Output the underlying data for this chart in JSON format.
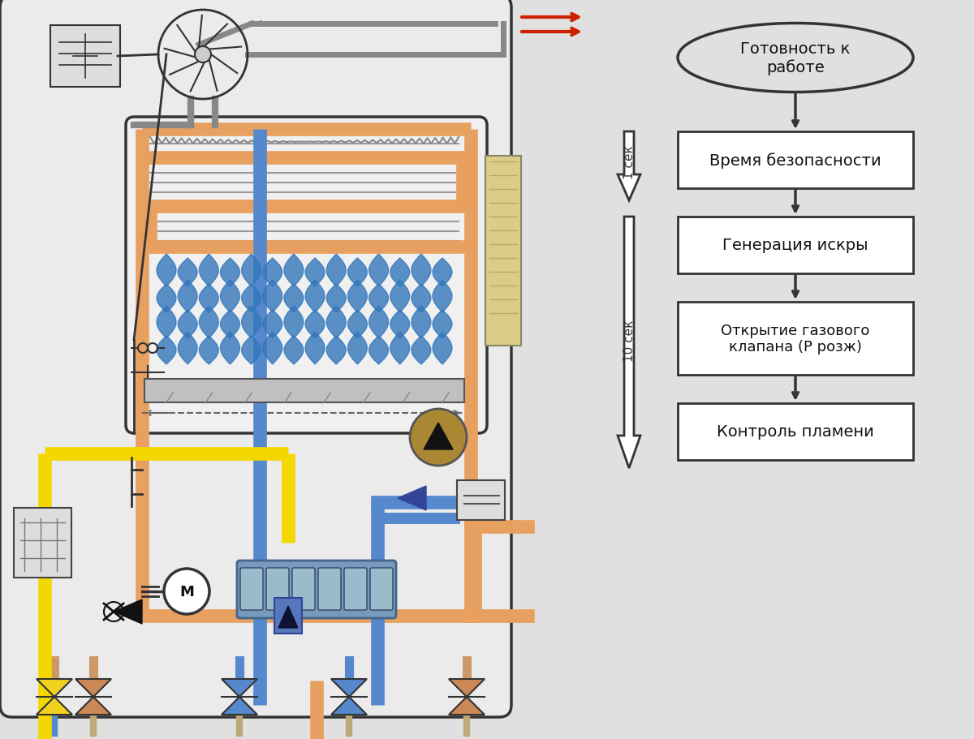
{
  "bg_color": "#e0e0e0",
  "flowchart": {
    "ellipse_text": "Готовность к\nработе",
    "boxes": [
      "Время безопасности",
      "Генерация искры",
      "Открытие газового\nклапана (Р розж)",
      "Контроль пламени"
    ],
    "arrow1_label": "1 сек",
    "arrow2_label": "10 сек",
    "box_color": "#ffffff",
    "box_edge": "#333333",
    "text_color": "#111111"
  },
  "boiler": {
    "orange": "#E8A060",
    "yellow": "#F2D800",
    "blue": "#5588CC",
    "blue_light": "#88AADD",
    "gray": "#888888",
    "red": "#CC2200",
    "flame": "#3377BB",
    "dark": "#333333",
    "cream": "#DDCC88",
    "pump_blue": "#7799BB"
  }
}
